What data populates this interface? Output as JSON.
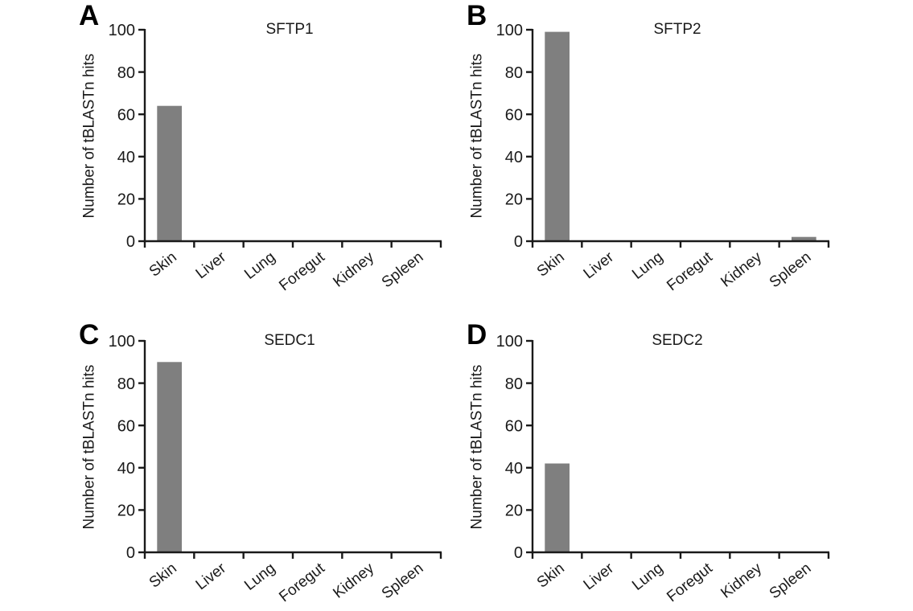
{
  "figure": {
    "background_color": "#ffffff",
    "bar_color": "#7f7f7f",
    "axis_color": "#1a1a1a",
    "text_color": "#1a1a1a"
  },
  "chart_data": [
    {
      "type": "bar",
      "panel": "A",
      "title": "SFTP1",
      "categories": [
        "Skin",
        "Liver",
        "Lung",
        "Foregut",
        "Kidney",
        "Spleen"
      ],
      "values": [
        64,
        0,
        0,
        0,
        0,
        0
      ],
      "xlabel": "",
      "ylabel": "Number of tBLASTn hits",
      "ylim": [
        0,
        100
      ],
      "yticks": [
        0,
        20,
        40,
        60,
        80,
        100
      ],
      "grid": false,
      "legend": false
    },
    {
      "type": "bar",
      "panel": "B",
      "title": "SFTP2",
      "categories": [
        "Skin",
        "Liver",
        "Lung",
        "Foregut",
        "Kidney",
        "Spleen"
      ],
      "values": [
        99,
        0,
        0,
        0,
        0,
        2
      ],
      "xlabel": "",
      "ylabel": "Number of tBLASTn hits",
      "ylim": [
        0,
        100
      ],
      "yticks": [
        0,
        20,
        40,
        60,
        80,
        100
      ],
      "grid": false,
      "legend": false
    },
    {
      "type": "bar",
      "panel": "C",
      "title": "SEDC1",
      "categories": [
        "Skin",
        "Liver",
        "Lung",
        "Foregut",
        "Kidney",
        "Spleen"
      ],
      "values": [
        90,
        0,
        0,
        0,
        0,
        0
      ],
      "xlabel": "",
      "ylabel": "Number of tBLASTn hits",
      "ylim": [
        0,
        100
      ],
      "yticks": [
        0,
        20,
        40,
        60,
        80,
        100
      ],
      "grid": false,
      "legend": false
    },
    {
      "type": "bar",
      "panel": "D",
      "title": "SEDC2",
      "categories": [
        "Skin",
        "Liver",
        "Lung",
        "Foregut",
        "Kidney",
        "Spleen"
      ],
      "values": [
        42,
        0,
        0,
        0,
        0,
        0
      ],
      "xlabel": "",
      "ylabel": "Number of tBLASTn hits",
      "ylim": [
        0,
        100
      ],
      "yticks": [
        0,
        20,
        40,
        60,
        80,
        100
      ],
      "grid": false,
      "legend": false
    }
  ]
}
